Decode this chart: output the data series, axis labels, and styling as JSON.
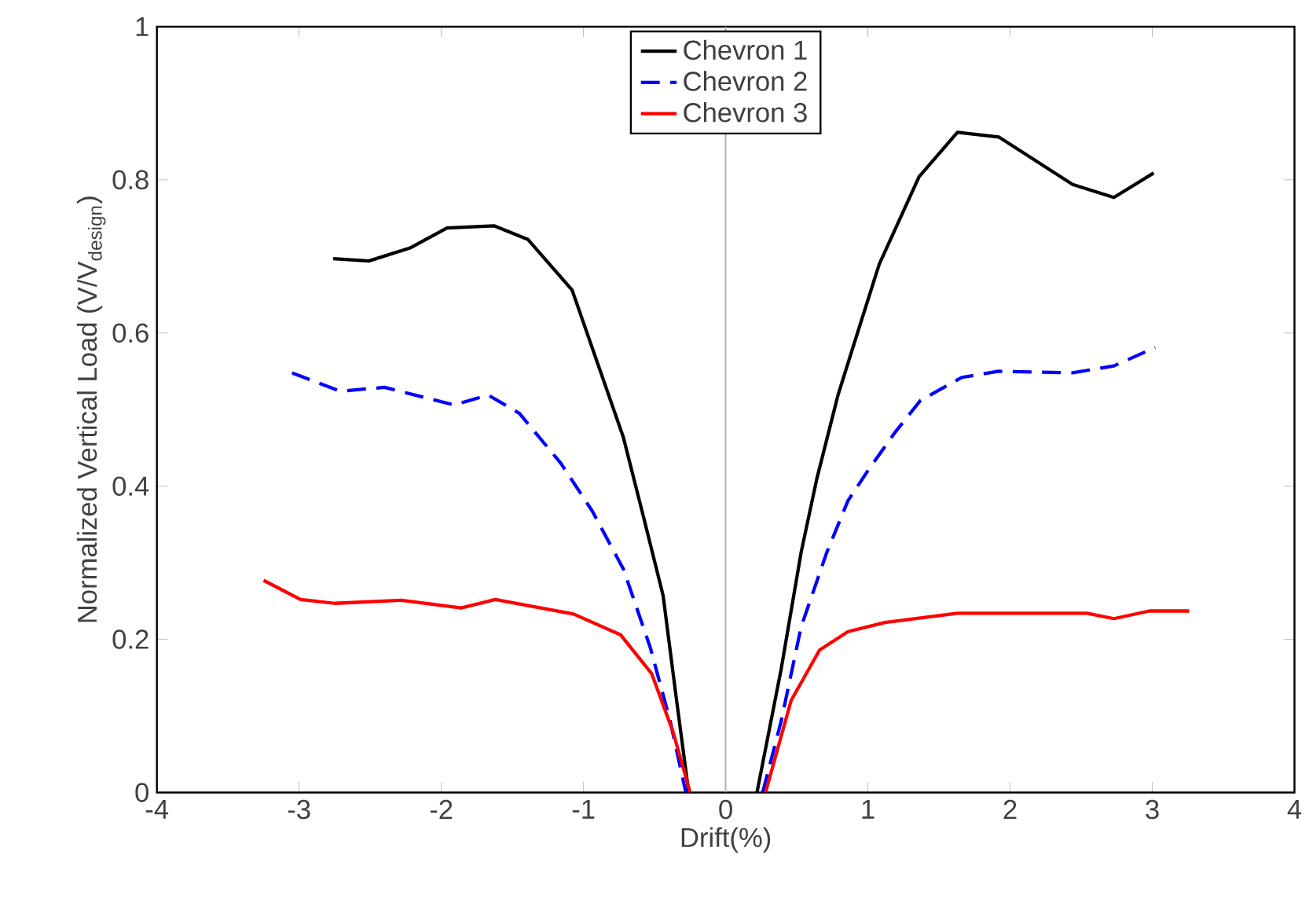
{
  "chart_data": {
    "type": "line",
    "xlabel": "Drift(%)",
    "ylabel": "Normalized Vertical Load (V/V$_{design}$)",
    "xlim": [
      -4,
      4
    ],
    "ylim": [
      0,
      1
    ],
    "xticks": [
      -4,
      -3,
      -2,
      -1,
      0,
      1,
      2,
      3,
      4
    ],
    "yticks": [
      0,
      0.2,
      0.4,
      0.6,
      0.8,
      1
    ],
    "grid": false,
    "legend": "top",
    "marker": "none",
    "ref_lines": [
      {
        "axis": "x",
        "value": 0,
        "color": "#b0b0b0"
      }
    ],
    "series": [
      {
        "name": "Chevron 1",
        "color": "#000000",
        "line_style": "solid",
        "x": [
          -2.76,
          -2.51,
          -2.22,
          -1.96,
          -1.63,
          -1.39,
          -1.08,
          -0.9,
          -0.72,
          -0.57,
          -0.44,
          -0.35,
          -0.26,
          0,
          0.22,
          0.39,
          0.53,
          0.64,
          0.79,
          0.93,
          1.08,
          1.36,
          1.63,
          1.92,
          2.44,
          2.73,
          3.01
        ],
        "values": [
          0.697,
          0.694,
          0.711,
          0.737,
          0.74,
          0.722,
          0.656,
          0.56,
          0.464,
          0.354,
          0.257,
          0.127,
          0,
          null,
          0,
          0.161,
          0.313,
          0.409,
          0.519,
          0.602,
          0.69,
          0.804,
          0.862,
          0.856,
          0.794,
          0.777,
          0.809
        ]
      },
      {
        "name": "Chevron 2",
        "color": "#0000ff",
        "line_style": "dashed",
        "x": [
          -3.05,
          -2.71,
          -2.4,
          -1.91,
          -1.67,
          -1.45,
          -1.16,
          -0.94,
          -0.72,
          -0.53,
          -0.39,
          -0.28,
          0,
          0.26,
          0.39,
          0.53,
          0.71,
          0.86,
          1.01,
          1.19,
          1.37,
          1.66,
          1.92,
          2.44,
          2.73,
          3.02
        ],
        "values": [
          0.548,
          0.524,
          0.529,
          0.506,
          0.519,
          0.495,
          0.43,
          0.368,
          0.292,
          0.189,
          0.093,
          0,
          null,
          0,
          0.093,
          0.216,
          0.313,
          0.381,
          0.423,
          0.47,
          0.512,
          0.542,
          0.55,
          0.548,
          0.557,
          0.581
        ]
      },
      {
        "name": "Chevron 3",
        "color": "#ff0000",
        "line_style": "solid",
        "x": [
          -3.25,
          -2.99,
          -2.75,
          -2.28,
          -1.86,
          -1.62,
          -1.07,
          -0.74,
          -0.52,
          -0.37,
          -0.25,
          0,
          0.28,
          0.46,
          0.66,
          0.86,
          1.12,
          1.63,
          2.03,
          2.54,
          2.73,
          2.98,
          3.26
        ],
        "values": [
          0.277,
          0.252,
          0.247,
          0.251,
          0.241,
          0.252,
          0.233,
          0.206,
          0.155,
          0.079,
          0,
          null,
          0,
          0.12,
          0.186,
          0.21,
          0.222,
          0.234,
          0.234,
          0.234,
          0.227,
          0.237,
          0.237
        ]
      }
    ]
  }
}
